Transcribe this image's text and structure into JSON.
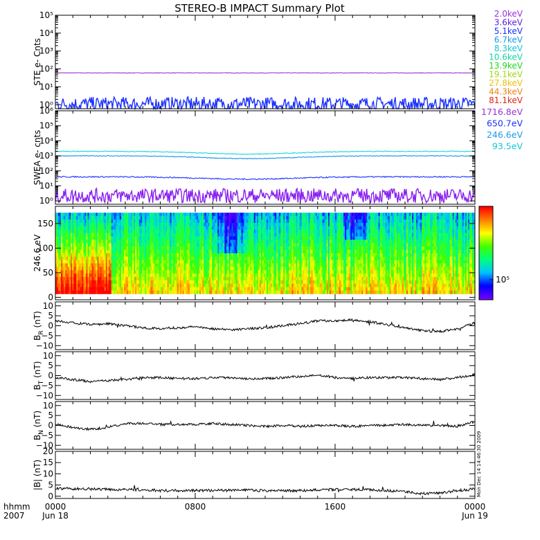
{
  "title": "STEREO-B IMPACT Summary Plot",
  "stamp": "Mon Dec 14 14:46:30 2009",
  "time_axis": {
    "prefix_top": "hhmm",
    "prefix_bottom": "2007",
    "ticks": [
      {
        "hour": 0,
        "label": "0000",
        "date": "Jun 18"
      },
      {
        "hour": 8,
        "label": "0800",
        "date": ""
      },
      {
        "hour": 16,
        "label": "1600",
        "date": ""
      },
      {
        "hour": 24,
        "label": "0000",
        "date": "Jun 19"
      }
    ],
    "range": [
      0,
      24
    ]
  },
  "legend_ste": [
    {
      "label": "2.0keV",
      "color": "#9a30d8"
    },
    {
      "label": "3.6keV",
      "color": "#5a20d8"
    },
    {
      "label": "5.1keV",
      "color": "#1a30ff"
    },
    {
      "label": "6.7keV",
      "color": "#1a9ae8"
    },
    {
      "label": "8.3keV",
      "color": "#10c8d8"
    },
    {
      "label": "10.6keV",
      "color": "#10d8a0"
    },
    {
      "label": "13.9keV",
      "color": "#20d820"
    },
    {
      "label": "19.1keV",
      "color": "#a0d810"
    },
    {
      "label": "27.8keV",
      "color": "#f0c010"
    },
    {
      "label": "44.3keV",
      "color": "#f08010"
    },
    {
      "label": "81.1keV",
      "color": "#e02010"
    }
  ],
  "legend_swea": [
    {
      "label": "1716.8eV",
      "color": "#9a30d8"
    },
    {
      "label": "650.7eV",
      "color": "#1a30ff"
    },
    {
      "label": "246.6eV",
      "color": "#1a9ae8"
    },
    {
      "label": "93.5eV",
      "color": "#10c8d8"
    }
  ],
  "colorbar": {
    "label": "10⁵",
    "colors": [
      "#7000ff",
      "#0000ff",
      "#00c0ff",
      "#00ff80",
      "#40ff00",
      "#ffff00",
      "#ff8000",
      "#ff0000"
    ]
  },
  "chart_data": [
    {
      "id": "ste",
      "type": "line",
      "ylabel": "STE e- Cnts",
      "yscale": "log",
      "ylim": [
        0.6,
        100000
      ],
      "yticks": [
        {
          "v": 1,
          "label": "10⁰"
        },
        {
          "v": 10,
          "label": "10¹"
        },
        {
          "v": 100,
          "label": "10²"
        },
        {
          "v": 1000,
          "label": "10³"
        },
        {
          "v": 10000,
          "label": "10⁴"
        },
        {
          "v": 100000,
          "label": "10⁵"
        }
      ],
      "series": [
        {
          "color": "#9a30d8",
          "level": 60,
          "noise": 0.03,
          "spiky": false
        },
        {
          "color": "#1a30ff",
          "level": 1.0,
          "noise": 0.5,
          "spiky": true
        }
      ]
    },
    {
      "id": "swea",
      "type": "line",
      "ylabel": "SWEA e- cnts",
      "yscale": "log",
      "ylim": [
        0.6,
        1000000
      ],
      "yticks": [
        {
          "v": 1,
          "label": "10⁰"
        },
        {
          "v": 10,
          "label": "10¹"
        },
        {
          "v": 100,
          "label": "10²"
        },
        {
          "v": 1000,
          "label": "10³"
        },
        {
          "v": 10000,
          "label": "10⁴"
        },
        {
          "v": 100000,
          "label": "10⁵"
        },
        {
          "v": 1000000,
          "label": "10⁶"
        }
      ],
      "series": [
        {
          "color": "#10d8d8",
          "level": 2000,
          "noise": 0.05,
          "dip": 0.35
        },
        {
          "color": "#1a90e8",
          "level": 1000,
          "noise": 0.05,
          "dip": 0.35
        },
        {
          "color": "#1a30ff",
          "level": 40,
          "noise": 0.08,
          "dip": 0.3
        },
        {
          "color": "#8a20f0",
          "level": 2.0,
          "noise": 0.6,
          "spiky": true
        }
      ]
    },
    {
      "id": "pad",
      "type": "heatmap",
      "ylabel": "246.6 eV",
      "ylim": [
        -5,
        185
      ],
      "yticks": [
        {
          "v": 0,
          "label": "0"
        },
        {
          "v": 50,
          "label": "50"
        },
        {
          "v": 100,
          "label": "100"
        },
        {
          "v": 150,
          "label": "150"
        }
      ],
      "y_extent": [
        7,
        172
      ]
    },
    {
      "id": "br",
      "type": "line",
      "ylabel": "B_R (nT)",
      "ylim": [
        -12,
        12
      ],
      "yticks": [
        {
          "v": -10,
          "label": "−10"
        },
        {
          "v": -5,
          "label": "−5"
        },
        {
          "v": 0,
          "label": "0"
        },
        {
          "v": 5,
          "label": "5"
        },
        {
          "v": 10,
          "label": "10"
        }
      ],
      "trace": [
        [
          0,
          2.5
        ],
        [
          1,
          1.5
        ],
        [
          2,
          0.5
        ],
        [
          3,
          1.0
        ],
        [
          4,
          0
        ],
        [
          5,
          -1
        ],
        [
          6,
          -1.5
        ],
        [
          7,
          -1
        ],
        [
          8,
          -0.5
        ],
        [
          9,
          -1.5
        ],
        [
          10,
          -2
        ],
        [
          11,
          -1.5
        ],
        [
          12,
          -1
        ],
        [
          13,
          0
        ],
        [
          14,
          1
        ],
        [
          15,
          2.5
        ],
        [
          16,
          2.5
        ],
        [
          17,
          3
        ],
        [
          18,
          2
        ],
        [
          19,
          0.5
        ],
        [
          20,
          -1
        ],
        [
          21,
          -2.5
        ],
        [
          22,
          -3
        ],
        [
          23,
          -1.5
        ],
        [
          24,
          1.5
        ]
      ]
    },
    {
      "id": "bt",
      "type": "line",
      "ylabel": "B_T (nT)",
      "ylim": [
        -12,
        12
      ],
      "yticks": [
        {
          "v": -10,
          "label": "−10"
        },
        {
          "v": -5,
          "label": "−5"
        },
        {
          "v": 0,
          "label": "0"
        },
        {
          "v": 5,
          "label": "5"
        },
        {
          "v": 10,
          "label": "10"
        }
      ],
      "trace": [
        [
          0,
          -1
        ],
        [
          1,
          -2
        ],
        [
          2,
          -3
        ],
        [
          3,
          -2.5
        ],
        [
          4,
          -2
        ],
        [
          5,
          -1
        ],
        [
          6,
          -1
        ],
        [
          7,
          -1.5
        ],
        [
          8,
          -1.5
        ],
        [
          9,
          -1
        ],
        [
          10,
          -1
        ],
        [
          11,
          -1.5
        ],
        [
          12,
          -1.5
        ],
        [
          13,
          -1
        ],
        [
          14,
          -0.5
        ],
        [
          15,
          0.5
        ],
        [
          16,
          -1
        ],
        [
          17,
          -1.5
        ],
        [
          18,
          -1
        ],
        [
          19,
          -1
        ],
        [
          20,
          -1
        ],
        [
          21,
          -1.5
        ],
        [
          22,
          -2
        ],
        [
          23,
          -1
        ],
        [
          24,
          0.5
        ]
      ]
    },
    {
      "id": "bn",
      "type": "line",
      "ylabel": "B_N (nT)",
      "ylim": [
        -12,
        12
      ],
      "yticks": [
        {
          "v": -10,
          "label": "−10"
        },
        {
          "v": -5,
          "label": "−5"
        },
        {
          "v": 0,
          "label": "0"
        },
        {
          "v": 5,
          "label": "5"
        },
        {
          "v": 10,
          "label": "10"
        }
      ],
      "trace": [
        [
          0,
          0.5
        ],
        [
          1,
          -1
        ],
        [
          2,
          -2
        ],
        [
          3,
          -1
        ],
        [
          4,
          1
        ],
        [
          5,
          1
        ],
        [
          6,
          0.5
        ],
        [
          7,
          0.5
        ],
        [
          8,
          0.5
        ],
        [
          9,
          1
        ],
        [
          10,
          0.5
        ],
        [
          11,
          0
        ],
        [
          12,
          -0.5
        ],
        [
          13,
          0
        ],
        [
          14,
          -0.5
        ],
        [
          15,
          0
        ],
        [
          16,
          0
        ],
        [
          17,
          -0.5
        ],
        [
          18,
          0
        ],
        [
          19,
          0
        ],
        [
          20,
          0.5
        ],
        [
          21,
          0
        ],
        [
          22,
          0
        ],
        [
          23,
          -0.5
        ],
        [
          24,
          2
        ]
      ]
    },
    {
      "id": "bmag",
      "type": "line",
      "ylabel": "|B| (nT)",
      "ylim": [
        -1,
        20
      ],
      "yticks": [
        {
          "v": 0,
          "label": "0"
        },
        {
          "v": 5,
          "label": "5"
        },
        {
          "v": 10,
          "label": "10"
        },
        {
          "v": 15,
          "label": "15"
        },
        {
          "v": 20,
          "label": "20"
        }
      ],
      "trace": [
        [
          0,
          3.5
        ],
        [
          1,
          3.3
        ],
        [
          2,
          3.2
        ],
        [
          3,
          3
        ],
        [
          4,
          3
        ],
        [
          5,
          2.8
        ],
        [
          6,
          2.5
        ],
        [
          7,
          2.5
        ],
        [
          8,
          2.5
        ],
        [
          9,
          2.6
        ],
        [
          10,
          2.6
        ],
        [
          11,
          2.7
        ],
        [
          12,
          2.5
        ],
        [
          13,
          2.4
        ],
        [
          14,
          2.5
        ],
        [
          15,
          2.8
        ],
        [
          16,
          3
        ],
        [
          17,
          3
        ],
        [
          18,
          2.8
        ],
        [
          19,
          2.5
        ],
        [
          20,
          2
        ],
        [
          21,
          1.2
        ],
        [
          22,
          1.5
        ],
        [
          23,
          2.5
        ],
        [
          24,
          3.2
        ]
      ]
    }
  ]
}
